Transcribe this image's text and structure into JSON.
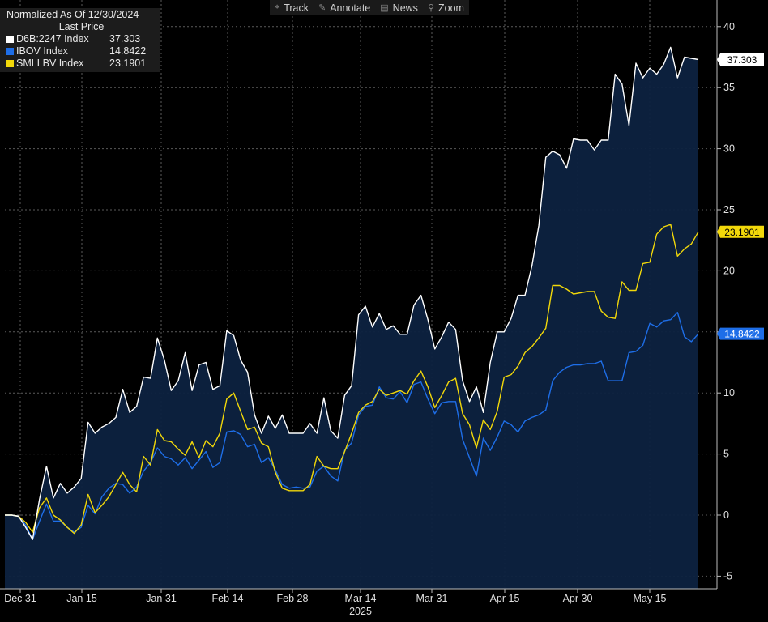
{
  "toolbar": {
    "items": [
      {
        "icon": "crosshair-icon",
        "glyph": "⌖",
        "label": "Track"
      },
      {
        "icon": "pencil-icon",
        "glyph": "✎",
        "label": "Annotate"
      },
      {
        "icon": "news-icon",
        "glyph": "▤",
        "label": "News"
      },
      {
        "icon": "magnifier-icon",
        "glyph": "⚲",
        "label": "Zoom"
      }
    ]
  },
  "legend": {
    "title": "Normalized As Of 12/30/2024",
    "subtitle": "Last Price",
    "items": [
      {
        "name": "D6B:2247 Index",
        "value": "37.303",
        "color": "#ffffff"
      },
      {
        "name": "IBOV Index",
        "value": "14.8422",
        "color": "#1e6ee8"
      },
      {
        "name": "SMLLBV Index",
        "value": "23.1901",
        "color": "#f2d80a"
      }
    ]
  },
  "chart_data": {
    "type": "line",
    "ylim": [
      -6,
      41
    ],
    "yticks": [
      -5,
      0,
      5,
      10,
      15,
      20,
      25,
      30,
      35,
      40
    ],
    "x_tick_labels": [
      "Dec 31",
      "Jan 15",
      "Jan 31",
      "Feb 14",
      "Feb 28",
      "Mar 14",
      "Mar 31",
      "Apr 15",
      "Apr 30",
      "May 15"
    ],
    "x_year_label": "2025",
    "grid": true,
    "legend_position": "top-left",
    "series": [
      {
        "name": "D6B:2247 Index",
        "color": "#ffffff",
        "last_label": "37.303",
        "values": [
          0.0,
          0.0,
          -0.1,
          -1.0,
          -2.0,
          1.3,
          4.0,
          1.4,
          2.6,
          1.8,
          2.3,
          3.0,
          7.6,
          6.7,
          7.2,
          7.5,
          8.0,
          10.3,
          8.4,
          8.9,
          11.3,
          11.2,
          14.5,
          12.7,
          10.2,
          11.0,
          13.3,
          10.2,
          12.3,
          12.5,
          10.3,
          10.6,
          15.1,
          14.7,
          12.7,
          11.7,
          8.2,
          6.7,
          8.1,
          7.1,
          8.2,
          6.7,
          6.7,
          6.7,
          7.5,
          6.7,
          9.6,
          6.9,
          6.3,
          9.8,
          10.6,
          16.4,
          17.1,
          15.4,
          16.5,
          15.2,
          15.5,
          14.8,
          14.8,
          17.2,
          18.0,
          16.0,
          13.6,
          14.6,
          15.8,
          15.2,
          11.0,
          9.3,
          10.5,
          8.4,
          12.5,
          15.0,
          15.0,
          16.1,
          18.0,
          18.0,
          20.4,
          23.7,
          29.3,
          29.8,
          29.5,
          28.4,
          30.8,
          30.7,
          30.7,
          29.9,
          30.7,
          30.7,
          36.1,
          35.3,
          31.9,
          37.0,
          35.8,
          36.6,
          36.1,
          36.9,
          38.3,
          35.8,
          37.5,
          37.4,
          37.303
        ]
      },
      {
        "name": "IBOV Index",
        "color": "#1e6ee8",
        "last_label": "14.8422",
        "values": [
          0.0,
          0.0,
          -0.1,
          -0.8,
          -2.0,
          -0.5,
          0.9,
          -0.5,
          -0.5,
          -1.0,
          -1.4,
          -1.0,
          0.8,
          0.1,
          1.5,
          2.2,
          2.6,
          2.5,
          1.8,
          2.3,
          3.6,
          4.3,
          5.5,
          4.8,
          4.6,
          4.1,
          4.7,
          3.8,
          4.5,
          5.2,
          3.9,
          4.3,
          6.8,
          6.9,
          6.6,
          5.6,
          5.8,
          4.3,
          4.7,
          3.7,
          2.5,
          2.2,
          2.3,
          2.2,
          2.3,
          3.6,
          4.0,
          3.2,
          2.8,
          5.3,
          5.9,
          8.2,
          8.9,
          9.0,
          10.5,
          9.6,
          9.5,
          10.1,
          9.2,
          10.7,
          10.9,
          9.5,
          8.3,
          9.2,
          9.3,
          9.3,
          6.2,
          4.7,
          3.2,
          6.3,
          5.3,
          6.4,
          7.7,
          7.4,
          6.8,
          7.7,
          8.0,
          8.2,
          8.6,
          11.0,
          11.7,
          12.1,
          12.3,
          12.3,
          12.4,
          12.4,
          12.6,
          11.0,
          11.0,
          11.0,
          13.3,
          13.4,
          13.9,
          15.7,
          15.4,
          15.9,
          16.0,
          16.6,
          14.6,
          14.2,
          14.8422
        ]
      },
      {
        "name": "SMLLBV Index",
        "color": "#f2d80a",
        "last_label": "23.1901",
        "values": [
          0.0,
          0.0,
          -0.1,
          -0.6,
          -1.4,
          0.6,
          1.4,
          0.0,
          -0.4,
          -1.0,
          -1.5,
          -0.8,
          1.7,
          0.2,
          0.8,
          1.5,
          2.5,
          3.5,
          2.5,
          1.9,
          4.8,
          4.1,
          7.0,
          6.1,
          6.0,
          5.4,
          4.9,
          6.0,
          4.7,
          6.1,
          5.6,
          6.7,
          9.5,
          10.0,
          8.5,
          7.0,
          7.2,
          5.9,
          5.6,
          3.5,
          2.2,
          2.0,
          2.0,
          2.0,
          2.5,
          4.8,
          4.0,
          3.8,
          3.8,
          5.2,
          6.7,
          8.4,
          9.0,
          9.3,
          10.3,
          9.8,
          10.0,
          10.2,
          9.9,
          11.0,
          11.8,
          10.5,
          8.8,
          9.8,
          10.9,
          11.2,
          8.3,
          7.4,
          5.5,
          7.8,
          7.0,
          8.5,
          11.3,
          11.5,
          12.2,
          13.3,
          13.8,
          14.5,
          15.3,
          18.8,
          18.8,
          18.5,
          18.1,
          18.2,
          18.3,
          18.3,
          16.7,
          16.2,
          16.1,
          19.1,
          18.4,
          18.4,
          20.6,
          20.7,
          23.0,
          23.6,
          23.8,
          21.2,
          21.8,
          22.2,
          23.1901
        ]
      }
    ]
  }
}
